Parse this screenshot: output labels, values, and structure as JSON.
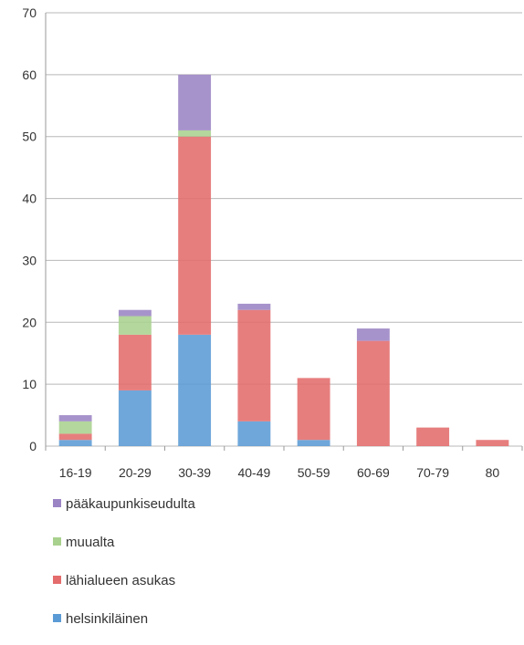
{
  "chart_data": {
    "type": "bar",
    "stacked": true,
    "categories": [
      "16-19",
      "20-29",
      "30-39",
      "40-49",
      "50-59",
      "60-69",
      "70-79",
      "80"
    ],
    "ylim": [
      0,
      70
    ],
    "yticks": [
      0,
      10,
      20,
      30,
      40,
      50,
      60,
      70
    ],
    "grid": true,
    "legend_position": "bottom",
    "series": [
      {
        "name": "helsinkiläinen",
        "color": "#5b9bd5",
        "values": [
          1,
          9,
          18,
          4,
          1,
          0,
          0,
          0
        ]
      },
      {
        "name": "lähialueen asukas",
        "color": "#e46c6c",
        "values": [
          1,
          9,
          32,
          18,
          10,
          17,
          3,
          1
        ]
      },
      {
        "name": "muualta",
        "color": "#a9d18e",
        "values": [
          2,
          3,
          1,
          0,
          0,
          0,
          0,
          0
        ]
      },
      {
        "name": "pääkaupunkiseudulta",
        "color": "#9b84c4",
        "values": [
          1,
          1,
          9,
          1,
          0,
          2,
          0,
          0
        ]
      }
    ],
    "legend_order": [
      "pääkaupunkiseudulta",
      "muualta",
      "lähialueen asukas",
      "helsinkiläinen"
    ]
  }
}
